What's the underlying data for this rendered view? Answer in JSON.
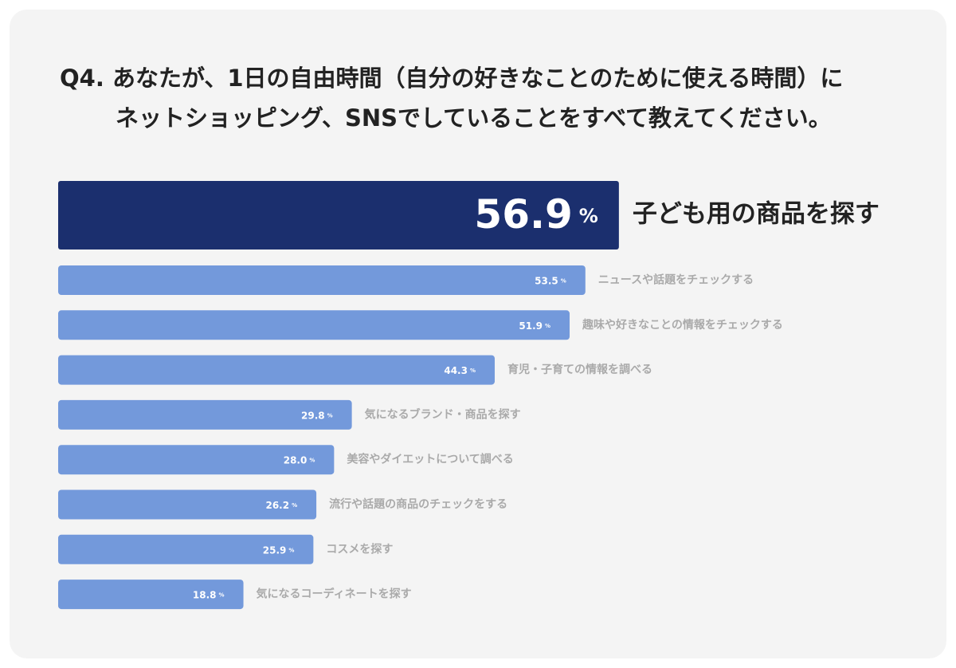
{
  "chart_data": {
    "type": "bar",
    "title": [
      "Q4. あなたが、1日の自由時間（自分の好きなことのために使える時間）に",
      "ネットショッピング、SNSでしていることをすべて教えてください。"
    ],
    "categories": [
      "子ども用の商品を探す",
      "ニュースや話題をチェックする",
      "趣味や好きなことの情報をチェックする",
      "育児・子育ての情報を調べる",
      "気になるブランド・商品を探す",
      "美容やダイエットについて調べる",
      "流行や話題の商品のチェックをする",
      "コスメを探す",
      "気になるコーディネートを探す"
    ],
    "values": [
      56.9,
      53.5,
      51.9,
      44.3,
      29.8,
      28.0,
      26.2,
      25.9,
      18.8
    ],
    "value_labels": [
      "56.9",
      "53.5",
      "51.9",
      "44.3",
      "29.8",
      "28.0",
      "26.2",
      "25.9",
      "18.8"
    ],
    "unit": "%",
    "colors": [
      "#1b2f6e",
      "#7399db",
      "#7399db",
      "#7399db",
      "#7399db",
      "#7399db",
      "#7399db",
      "#7399db",
      "#7399db"
    ]
  }
}
